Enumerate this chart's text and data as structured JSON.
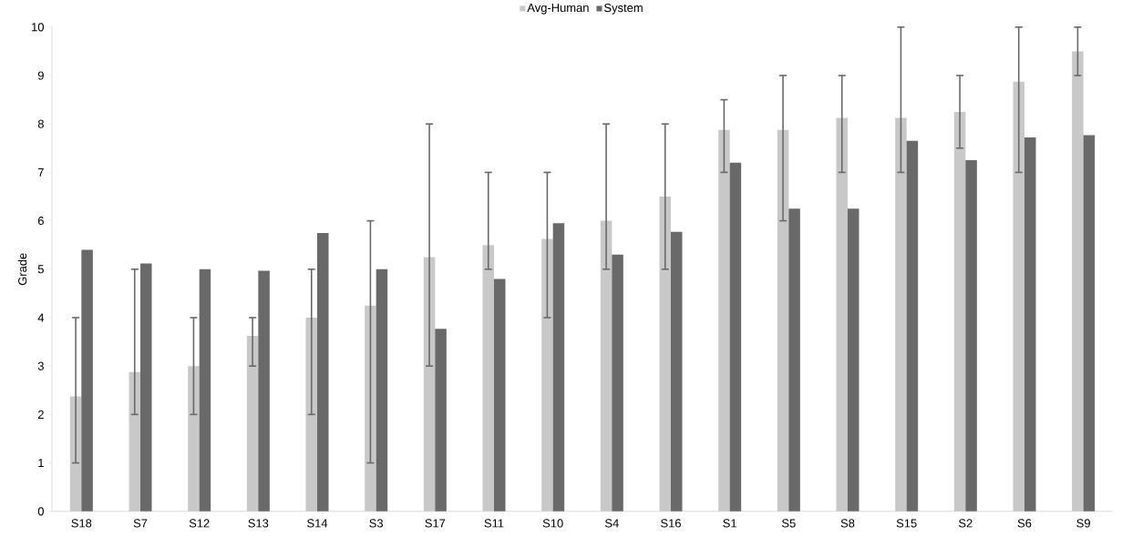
{
  "chart_data": {
    "type": "bar",
    "ylabel": "Grade",
    "legend": "top",
    "grid": false,
    "categories": [
      "S18",
      "S7",
      "S12",
      "S13",
      "S14",
      "S3",
      "S17",
      "S11",
      "S10",
      "S4",
      "S16",
      "S1",
      "S5",
      "S8",
      "S15",
      "S2",
      "S6",
      "S9"
    ],
    "series": [
      {
        "name": "Avg-Human",
        "color": "#c8c8c8",
        "values": [
          2.375,
          2.875,
          3.0,
          3.625,
          4.0,
          4.25,
          5.25,
          5.5,
          5.625,
          6.0,
          6.5,
          7.875,
          7.875,
          8.125,
          8.125,
          8.25,
          8.875,
          9.5
        ],
        "errors": [
          [
            1,
            4
          ],
          [
            2,
            5
          ],
          [
            2,
            4
          ],
          [
            3,
            4
          ],
          [
            2,
            5
          ],
          [
            1,
            6
          ],
          [
            3,
            8
          ],
          [
            5,
            7
          ],
          [
            4,
            7
          ],
          [
            5,
            8
          ],
          [
            5,
            8
          ],
          [
            7,
            8.5
          ],
          [
            6,
            9
          ],
          [
            7,
            9
          ],
          [
            7,
            10
          ],
          [
            7.5,
            9
          ],
          [
            7,
            10
          ],
          [
            9,
            10
          ]
        ]
      },
      {
        "name": "System",
        "color": "#696969",
        "values": [
          5.4,
          5.12,
          5.0,
          4.97,
          5.75,
          5.0,
          3.77,
          4.8,
          5.95,
          5.3,
          5.77,
          7.2,
          6.25,
          6.25,
          7.65,
          7.25,
          7.72,
          7.77
        ]
      }
    ],
    "ylim": [
      0,
      10
    ],
    "yticks": [
      0,
      1,
      2,
      3,
      4,
      5,
      6,
      7,
      8,
      9,
      10
    ]
  }
}
